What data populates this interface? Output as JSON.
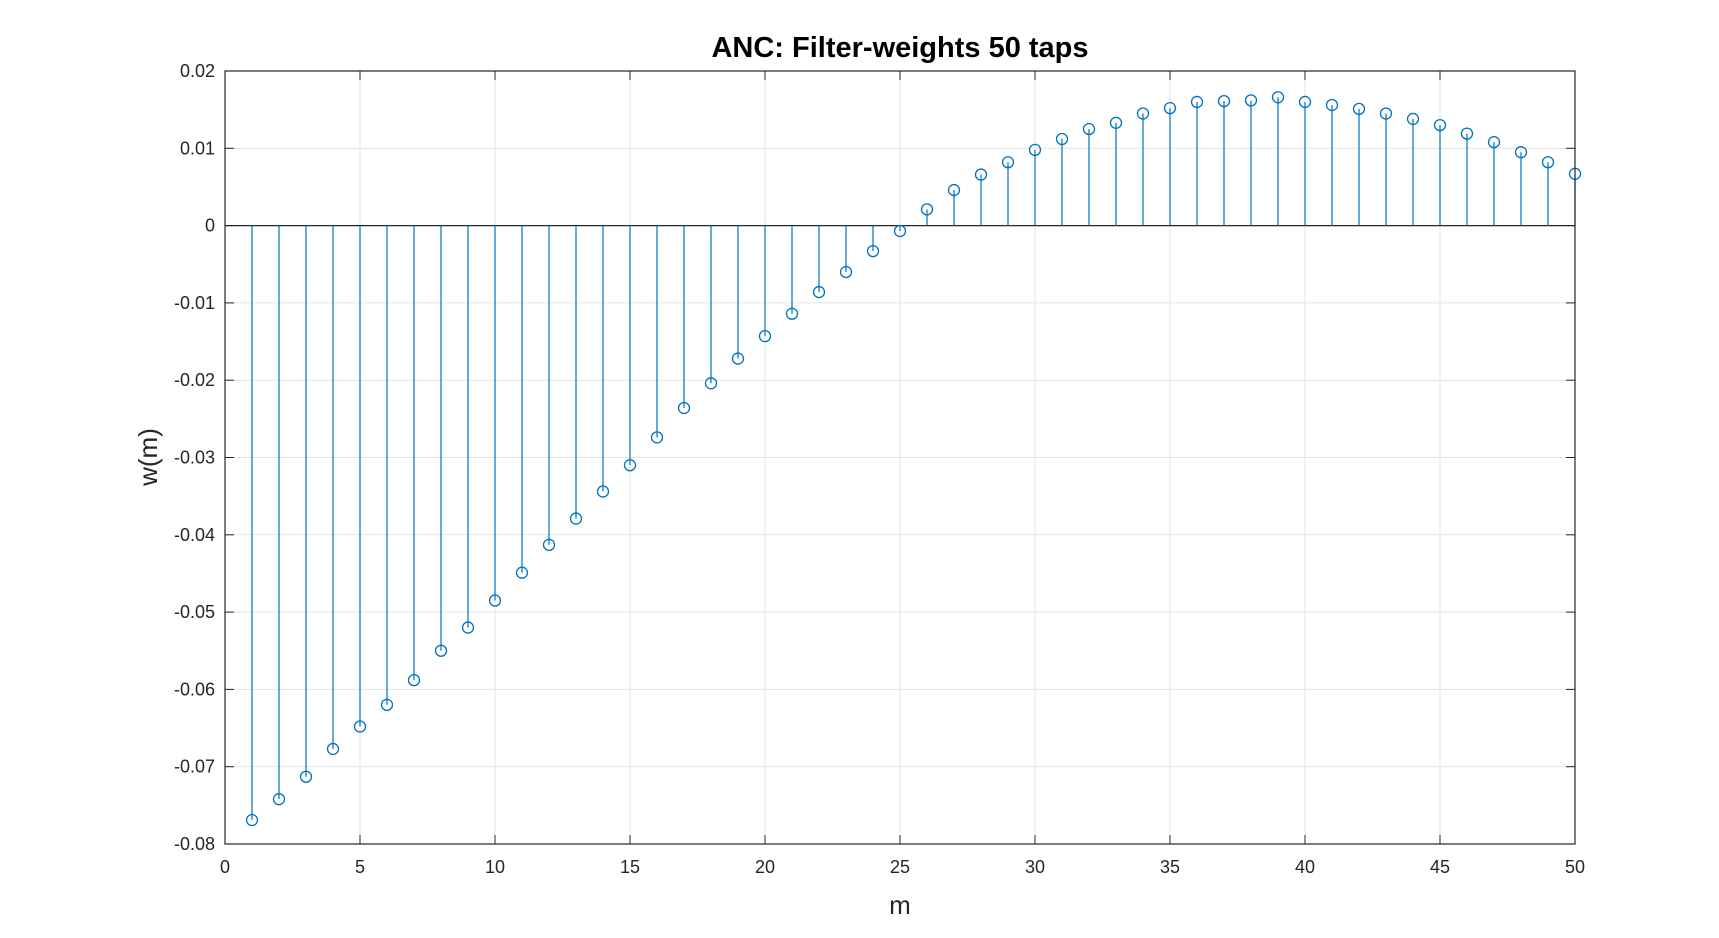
{
  "chart_data": {
    "type": "stem",
    "title": "ANC: Filter-weights 50 taps",
    "xlabel": "m",
    "ylabel": "w(m)",
    "xlim": [
      0,
      50
    ],
    "ylim": [
      -0.08,
      0.02
    ],
    "xticks": [
      "0",
      "5",
      "10",
      "15",
      "20",
      "25",
      "30",
      "35",
      "40",
      "45",
      "50"
    ],
    "yticks": [
      "0.02",
      "0.01",
      "0",
      "-0.01",
      "-0.02",
      "-0.03",
      "-0.04",
      "-0.05",
      "-0.06",
      "-0.07",
      "-0.08"
    ],
    "grid": true,
    "color": "#0072BD",
    "x": [
      1,
      2,
      3,
      4,
      5,
      6,
      7,
      8,
      9,
      10,
      11,
      12,
      13,
      14,
      15,
      16,
      17,
      18,
      19,
      20,
      21,
      22,
      23,
      24,
      25,
      26,
      27,
      28,
      29,
      30,
      31,
      32,
      33,
      34,
      35,
      36,
      37,
      38,
      39,
      40,
      41,
      42,
      43,
      44,
      45,
      46,
      47,
      48,
      49,
      50
    ],
    "values": [
      -0.0769,
      -0.0742,
      -0.0713,
      -0.0677,
      -0.0648,
      -0.062,
      -0.0588,
      -0.055,
      -0.052,
      -0.0485,
      -0.0449,
      -0.0413,
      -0.0379,
      -0.0344,
      -0.031,
      -0.0274,
      -0.0236,
      -0.0204,
      -0.0172,
      -0.0143,
      -0.0114,
      -0.0086,
      -0.006,
      -0.0033,
      -0.0007,
      0.0021,
      0.0046,
      0.0066,
      0.0082,
      0.0098,
      0.0112,
      0.0125,
      0.0133,
      0.0145,
      0.0152,
      0.016,
      0.0161,
      0.0162,
      0.0166,
      0.016,
      0.0156,
      0.0151,
      0.0145,
      0.0138,
      0.013,
      0.0119,
      0.0108,
      0.0095,
      0.0082,
      0.0067
    ]
  }
}
